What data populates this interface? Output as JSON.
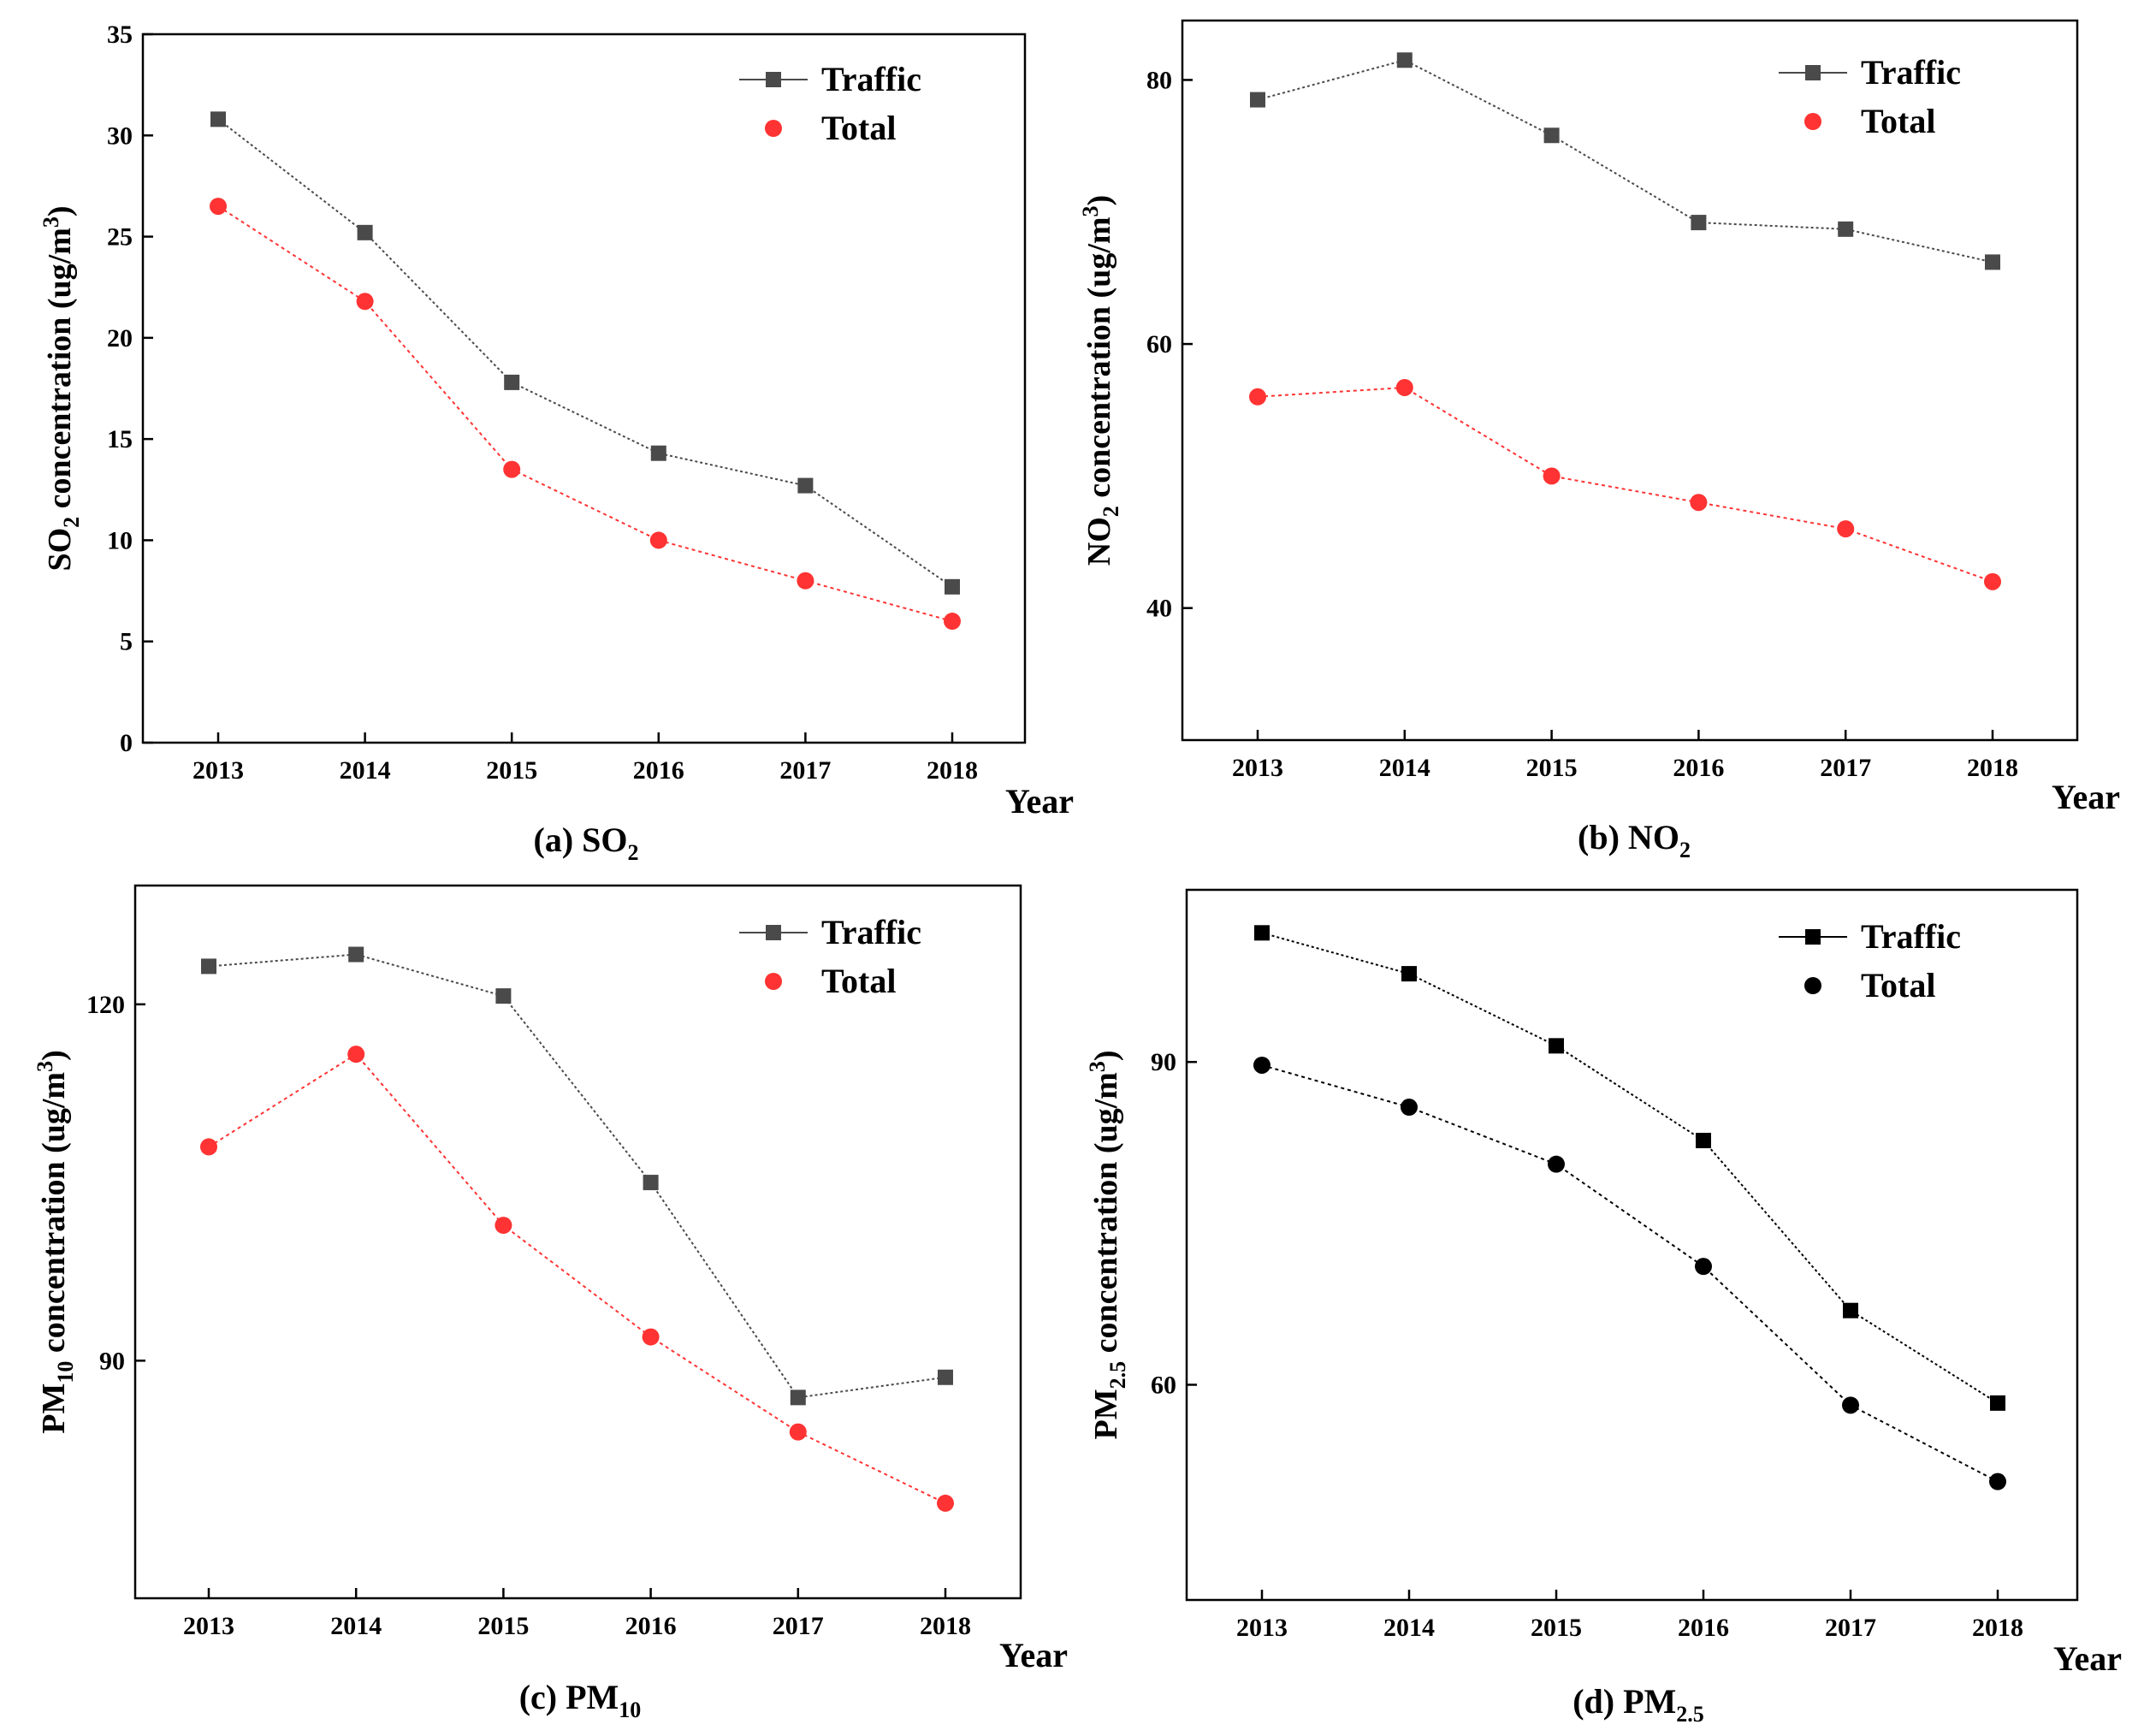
{
  "chart_data": [
    {
      "type": "line",
      "caption": "(a) SO",
      "caption_sub": "2",
      "ylabel": {
        "pre": "SO",
        "sub": "2",
        "mid": " concentration (ug/m",
        "sup": "3",
        "post": ")"
      },
      "xlabel": "Year",
      "categories": [
        "2013",
        "2014",
        "2015",
        "2016",
        "2017",
        "2018"
      ],
      "ylim": [
        0,
        35
      ],
      "yticks": [
        "0",
        "5",
        "10",
        "15",
        "20",
        "25",
        "30",
        "35"
      ],
      "series": [
        {
          "name": "Traffic",
          "values": [
            30.8,
            25.2,
            17.8,
            14.3,
            12.7,
            7.7
          ],
          "color": "#4a4a4a",
          "marker": "square"
        },
        {
          "name": "Total",
          "values": [
            26.5,
            21.8,
            13.5,
            10.0,
            8.0,
            6.0
          ],
          "color": "#ff3333",
          "marker": "circle"
        }
      ],
      "legend": "top-right"
    },
    {
      "type": "line",
      "caption": "(b) NO",
      "caption_sub": "2",
      "ylabel": {
        "pre": "NO",
        "sub": "2",
        "mid": " concentration (ug/m",
        "sup": "3",
        "post": ")"
      },
      "xlabel": "Year",
      "categories": [
        "2013",
        "2014",
        "2015",
        "2016",
        "2017",
        "2018"
      ],
      "ylim": [
        30,
        84.5
      ],
      "yticks": [
        "40",
        "60",
        "80"
      ],
      "series": [
        {
          "name": "Traffic",
          "values": [
            78.5,
            81.5,
            75.8,
            69.2,
            68.7,
            66.2
          ],
          "color": "#4a4a4a",
          "marker": "square"
        },
        {
          "name": "Total",
          "values": [
            56.0,
            56.7,
            50.0,
            48.0,
            46.0,
            42.0
          ],
          "color": "#ff3333",
          "marker": "circle"
        }
      ],
      "legend": "top-right"
    },
    {
      "type": "line",
      "caption": "(c) PM",
      "caption_sub": "10",
      "ylabel": {
        "pre": "PM",
        "sub": "10",
        "mid": " concentration (ug/m",
        "sup": "3",
        "post": ")"
      },
      "xlabel": "Year",
      "categories": [
        "2013",
        "2014",
        "2015",
        "2016",
        "2017",
        "2018"
      ],
      "ylim": [
        70,
        130
      ],
      "yticks": [
        "90",
        "120"
      ],
      "series": [
        {
          "name": "Traffic",
          "values": [
            123.2,
            124.2,
            120.7,
            105.0,
            86.9,
            88.6
          ],
          "color": "#4a4a4a",
          "marker": "square"
        },
        {
          "name": "Total",
          "values": [
            108.0,
            115.8,
            101.4,
            92.0,
            84.0,
            78.0
          ],
          "color": "#ff3333",
          "marker": "circle"
        }
      ],
      "legend": "top-right"
    },
    {
      "type": "line",
      "caption": "(d) PM",
      "caption_sub": "2.5",
      "ylabel": {
        "pre": "PM",
        "sub": "2.5",
        "mid": " concentration (ug/m",
        "sup": "3",
        "post": ")"
      },
      "xlabel": "Year",
      "categories": [
        "2013",
        "2014",
        "2015",
        "2016",
        "2017",
        "2018"
      ],
      "ylim": [
        40,
        106
      ],
      "yticks": [
        "60",
        "90"
      ],
      "series": [
        {
          "name": "Traffic",
          "values": [
            102.0,
            98.2,
            91.5,
            82.7,
            66.9,
            58.3
          ],
          "color": "#000000",
          "marker": "square"
        },
        {
          "name": "Total",
          "values": [
            89.7,
            85.8,
            80.5,
            71.0,
            58.1,
            51.0
          ],
          "color": "#000000",
          "marker": "circle"
        }
      ],
      "legend": "top-right"
    }
  ]
}
